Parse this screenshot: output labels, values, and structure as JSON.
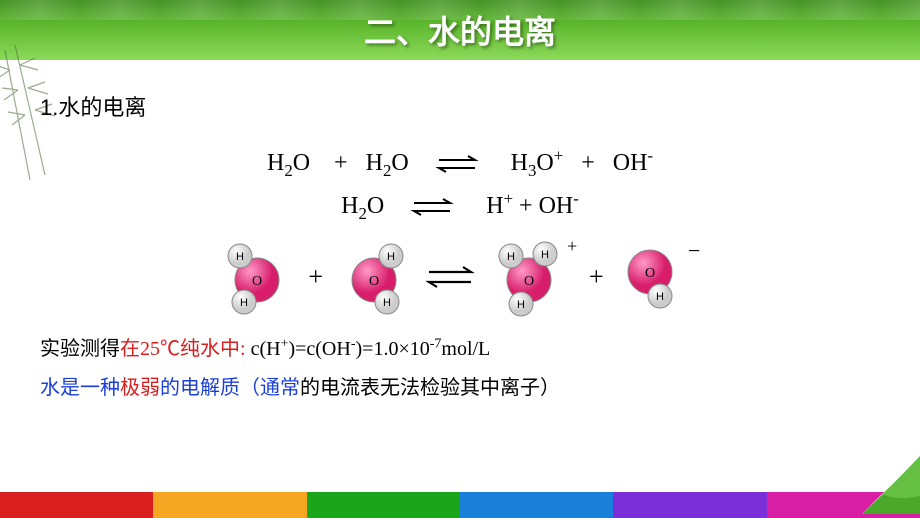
{
  "header": {
    "title": "二、水的电离",
    "bg_gradient": [
      "#3a8c1a",
      "#5eb82e",
      "#8cd95a"
    ],
    "title_color": "#ffffff"
  },
  "section": {
    "heading": "1.水的电离"
  },
  "equations": {
    "eq1_left1": "H",
    "eq1_left1_sub": "2",
    "eq1_left1_end": "O",
    "eq1_plus": "+",
    "eq1_left2": "H",
    "eq1_left2_sub": "2",
    "eq1_left2_end": "O",
    "eq1_right1": "H",
    "eq1_right1_sub": "3",
    "eq1_right1_end": "O",
    "eq1_right1_sup": "+",
    "eq1_right2": "OH",
    "eq1_right2_sup": "-",
    "eq2_left": "H",
    "eq2_left_sub": "2",
    "eq2_left_end": "O",
    "eq2_right1": "H",
    "eq2_right1_sup": "+",
    "eq2_plus": "+ OH",
    "eq2_right2_sup": "-"
  },
  "molecules": {
    "oxygen_color": "#e83f8c",
    "hydrogen_color": "#f0f0f0",
    "stroke": "#666666",
    "label_O": "O",
    "label_H": "H",
    "charge_pos": "+",
    "charge_neg": "−"
  },
  "experiment": {
    "prefix": "实验测得",
    "highlight": "在25℃纯水中:",
    "formula": "c(H⁺)=c(OH⁻)=1.0×10⁻⁷mol/L"
  },
  "conclusion": {
    "part1": "水是一种",
    "emph": "极弱",
    "part2": "的电解质（通常",
    "part3": "的电流表无法检验其中离子）"
  },
  "footer_colors": [
    "#d81e1e",
    "#f5a623",
    "#1aa51a",
    "#1a7fd8",
    "#7a2fd8",
    "#d81ea5"
  ],
  "corner_color": "#2a8a2a"
}
